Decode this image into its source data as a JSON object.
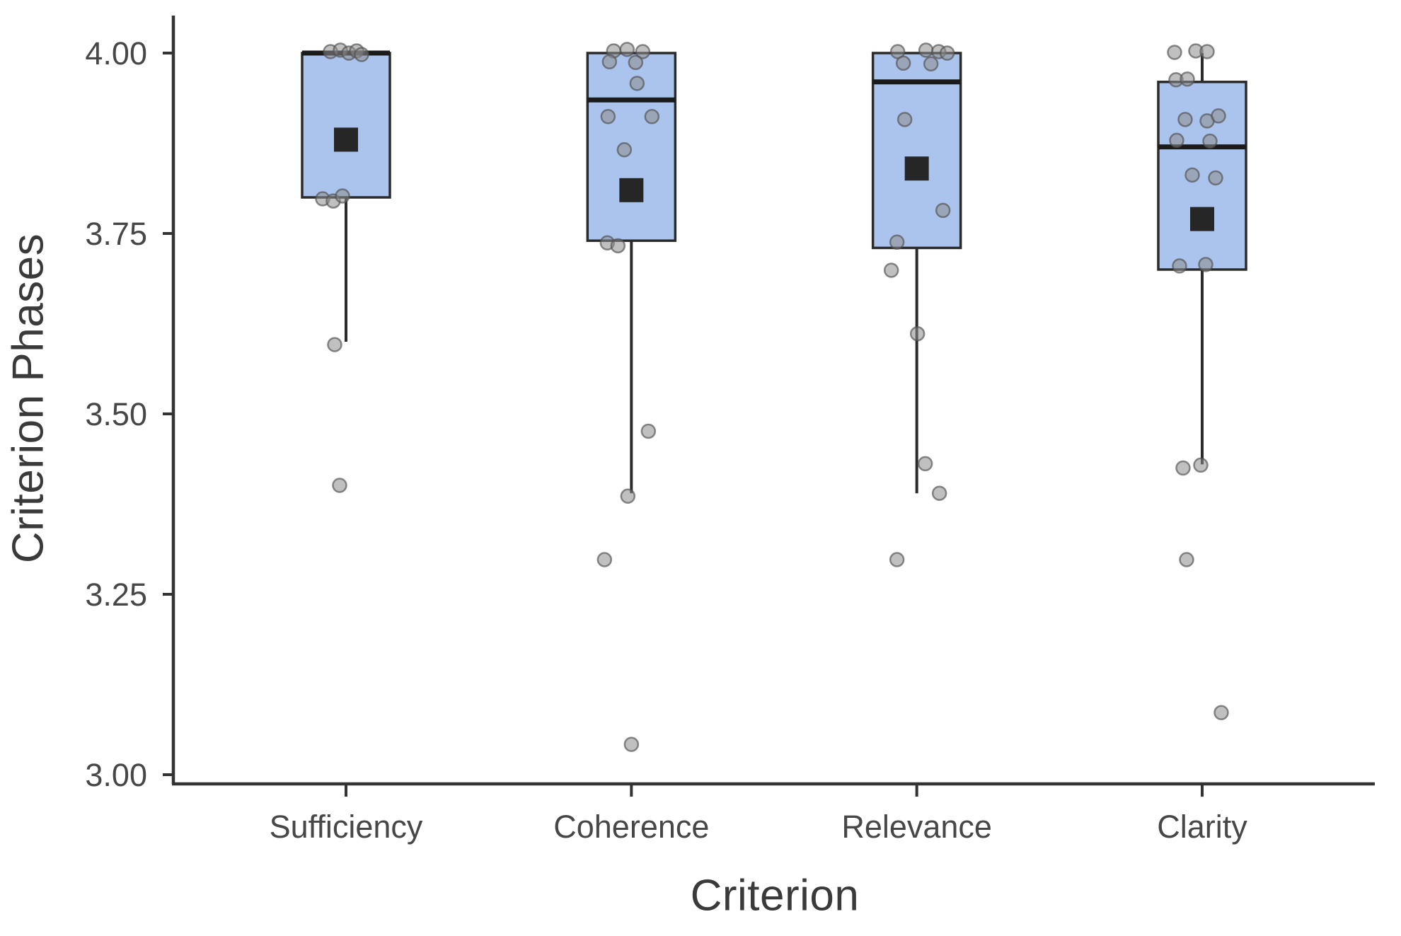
{
  "chart_data": {
    "type": "boxplot",
    "title": "",
    "xlabel": "Criterion",
    "ylabel": "Criterion Phases",
    "categories": [
      "Sufficiency",
      "Coherence",
      "Relevance",
      "Clarity"
    ],
    "ylim": [
      3.0,
      4.05
    ],
    "grid": "off",
    "legend": "none",
    "y_ticks": {
      "values": [
        4.0,
        3.75,
        3.5,
        3.25,
        3.0
      ],
      "labels": [
        "4.00",
        "3.75",
        "3.50",
        "3.25",
        "3.00"
      ]
    },
    "colors": {
      "box_fill": "#abc4ee",
      "box_stroke": "#2b2b2b",
      "median": "#1b1b1b",
      "mean_marker": "#262626",
      "point_fill": "rgba(140,140,140,0.55)",
      "point_stroke": "rgba(80,80,80,0.65)",
      "axis": "#333333",
      "tick_label": "#474747"
    },
    "series": [
      {
        "name": "Sufficiency",
        "q1": 3.8,
        "median": 4.0,
        "q3": 4.0,
        "whisker_low": 3.6,
        "whisker_high": 4.0,
        "mean": 3.88,
        "points": [
          {
            "dx": -22,
            "v": 4.002
          },
          {
            "dx": -8,
            "v": 4.004
          },
          {
            "dx": 4,
            "v": 4.0
          },
          {
            "dx": 15,
            "v": 4.003
          },
          {
            "dx": 22,
            "v": 3.998
          },
          {
            "dx": -33,
            "v": 3.798
          },
          {
            "dx": -18,
            "v": 3.795
          },
          {
            "dx": -5,
            "v": 3.802
          },
          {
            "dx": -16,
            "v": 3.596
          },
          {
            "dx": -9,
            "v": 3.401
          }
        ]
      },
      {
        "name": "Coherence",
        "q1": 3.74,
        "median": 3.935,
        "q3": 4.0,
        "whisker_low": 3.39,
        "whisker_high": 4.0,
        "mean": 3.81,
        "points": [
          {
            "dx": -25,
            "v": 4.003
          },
          {
            "dx": -6,
            "v": 4.005
          },
          {
            "dx": 16,
            "v": 4.002
          },
          {
            "dx": -31,
            "v": 3.988
          },
          {
            "dx": 6,
            "v": 3.987
          },
          {
            "dx": 8,
            "v": 3.958
          },
          {
            "dx": -33,
            "v": 3.912
          },
          {
            "dx": 29,
            "v": 3.912
          },
          {
            "dx": -10,
            "v": 3.866
          },
          {
            "dx": -34,
            "v": 3.737
          },
          {
            "dx": -19,
            "v": 3.733
          },
          {
            "dx": 24,
            "v": 3.476
          },
          {
            "dx": -5,
            "v": 3.386
          },
          {
            "dx": -38,
            "v": 3.298
          },
          {
            "dx": 0,
            "v": 3.042
          }
        ]
      },
      {
        "name": "Relevance",
        "q1": 3.73,
        "median": 3.96,
        "q3": 4.0,
        "whisker_low": 3.39,
        "whisker_high": 4.0,
        "mean": 3.84,
        "points": [
          {
            "dx": -27,
            "v": 4.002
          },
          {
            "dx": 13,
            "v": 4.004
          },
          {
            "dx": 31,
            "v": 4.002
          },
          {
            "dx": 43,
            "v": 4.0
          },
          {
            "dx": -19,
            "v": 3.986
          },
          {
            "dx": 20,
            "v": 3.985
          },
          {
            "dx": -17,
            "v": 3.908
          },
          {
            "dx": 37,
            "v": 3.782
          },
          {
            "dx": -28,
            "v": 3.738
          },
          {
            "dx": -36,
            "v": 3.699
          },
          {
            "dx": 1,
            "v": 3.611
          },
          {
            "dx": 12,
            "v": 3.431
          },
          {
            "dx": 32,
            "v": 3.39
          },
          {
            "dx": -28,
            "v": 3.298
          }
        ]
      },
      {
        "name": "Clarity",
        "q1": 3.7,
        "median": 3.87,
        "q3": 3.96,
        "whisker_low": 3.43,
        "whisker_high": 4.0,
        "mean": 3.77,
        "points": [
          {
            "dx": -39,
            "v": 4.001
          },
          {
            "dx": -9,
            "v": 4.003
          },
          {
            "dx": 7,
            "v": 4.002
          },
          {
            "dx": -37,
            "v": 3.963
          },
          {
            "dx": -21,
            "v": 3.964
          },
          {
            "dx": -24,
            "v": 3.908
          },
          {
            "dx": 7,
            "v": 3.906
          },
          {
            "dx": 23,
            "v": 3.913
          },
          {
            "dx": -36,
            "v": 3.879
          },
          {
            "dx": 11,
            "v": 3.878
          },
          {
            "dx": -14,
            "v": 3.831
          },
          {
            "dx": 19,
            "v": 3.827
          },
          {
            "dx": -32,
            "v": 3.705
          },
          {
            "dx": 5,
            "v": 3.707
          },
          {
            "dx": -27,
            "v": 3.425
          },
          {
            "dx": -2,
            "v": 3.429
          },
          {
            "dx": -22,
            "v": 3.298
          },
          {
            "dx": 27,
            "v": 3.086
          }
        ]
      }
    ]
  }
}
